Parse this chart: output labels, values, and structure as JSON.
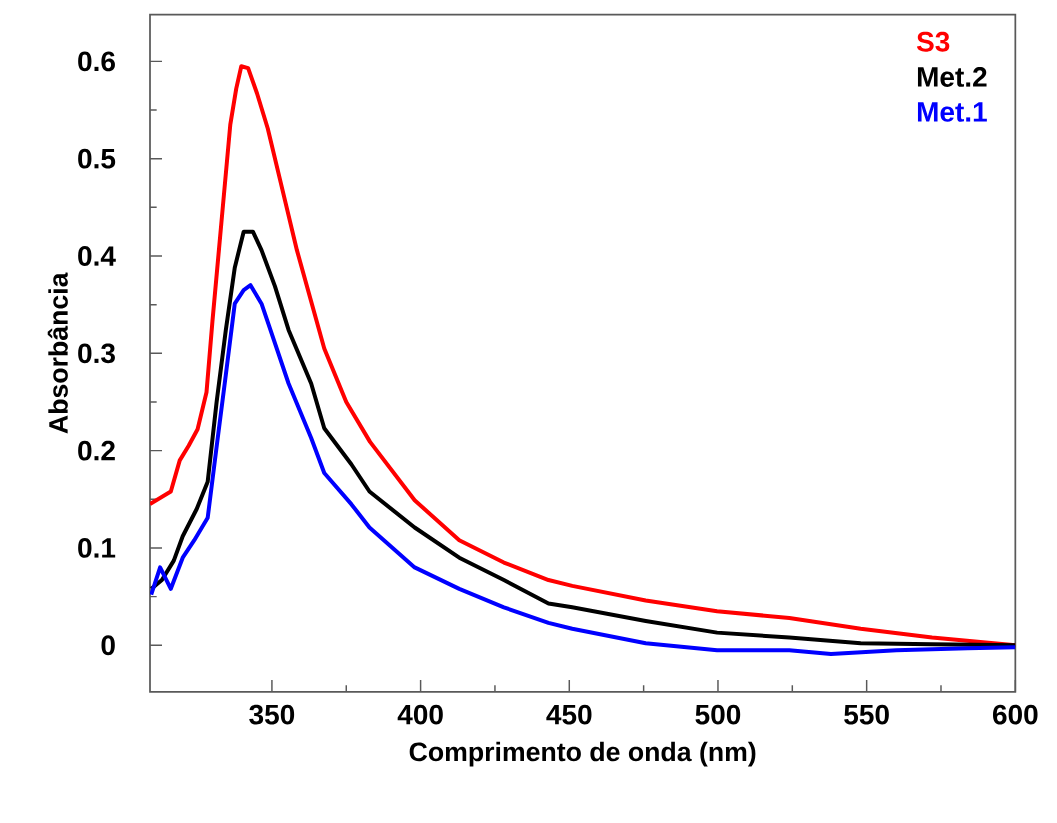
{
  "chart_data": {
    "type": "line",
    "xlabel": "Comprimento de onda (nm)",
    "ylabel": "Absorbância",
    "xlim": [
      309,
      600
    ],
    "ylim": [
      -0.048,
      0.648
    ],
    "xticks": [
      350,
      400,
      450,
      500,
      550,
      600
    ],
    "yticks": [
      0,
      0.1,
      0.2,
      0.3,
      0.4,
      0.5,
      0.6
    ],
    "legend": "top right",
    "grid": false,
    "marker": "none",
    "line_style": "solid",
    "series": [
      {
        "name": "S3",
        "color": "#ff0000",
        "x": [
          309,
          316,
          319,
          322,
          325,
          328,
          330,
          333,
          336,
          338,
          339.7,
          342,
          345,
          348.6,
          352.6,
          358.4,
          367.6,
          375,
          383,
          398,
          413,
          428,
          443,
          451,
          475.7,
          499.7,
          524,
          548,
          572,
          600
        ],
        "values": [
          0.145,
          0.158,
          0.19,
          0.205,
          0.222,
          0.26,
          0.333,
          0.434,
          0.535,
          0.572,
          0.595,
          0.593,
          0.567,
          0.531,
          0.48,
          0.406,
          0.305,
          0.25,
          0.209,
          0.149,
          0.108,
          0.085,
          0.067,
          0.061,
          0.046,
          0.035,
          0.028,
          0.017,
          0.008,
          0.0
        ]
      },
      {
        "name": "Met.2",
        "color": "#000000",
        "x": [
          309.4,
          313,
          317,
          320,
          324.7,
          328.4,
          331.4,
          334.5,
          337.5,
          340.5,
          343.6,
          346.5,
          351,
          355.6,
          363.2,
          367.6,
          376.7,
          382.8,
          398,
          413,
          428,
          443,
          451,
          475.7,
          499.7,
          524,
          548,
          572,
          600
        ],
        "values": [
          0.058,
          0.067,
          0.087,
          0.112,
          0.14,
          0.168,
          0.25,
          0.324,
          0.388,
          0.425,
          0.425,
          0.406,
          0.369,
          0.324,
          0.269,
          0.223,
          0.186,
          0.158,
          0.121,
          0.09,
          0.067,
          0.043,
          0.039,
          0.025,
          0.013,
          0.008,
          0.002,
          0.001,
          0.0
        ]
      },
      {
        "name": "Met.1",
        "color": "#0000ff",
        "x": [
          309.4,
          312.4,
          316,
          320,
          323.9,
          328.4,
          331.4,
          334.5,
          337.5,
          340.5,
          342.8,
          346.5,
          349.5,
          355.6,
          363.2,
          367.6,
          376.7,
          382.8,
          398,
          413,
          428,
          443,
          451,
          475.7,
          499.7,
          524,
          538,
          560,
          584,
          600
        ],
        "values": [
          0.052,
          0.08,
          0.058,
          0.09,
          0.108,
          0.131,
          0.204,
          0.278,
          0.351,
          0.365,
          0.37,
          0.351,
          0.324,
          0.269,
          0.213,
          0.177,
          0.145,
          0.121,
          0.08,
          0.058,
          0.039,
          0.023,
          0.017,
          0.002,
          -0.005,
          -0.005,
          -0.009,
          -0.005,
          -0.003,
          -0.002
        ]
      }
    ]
  }
}
